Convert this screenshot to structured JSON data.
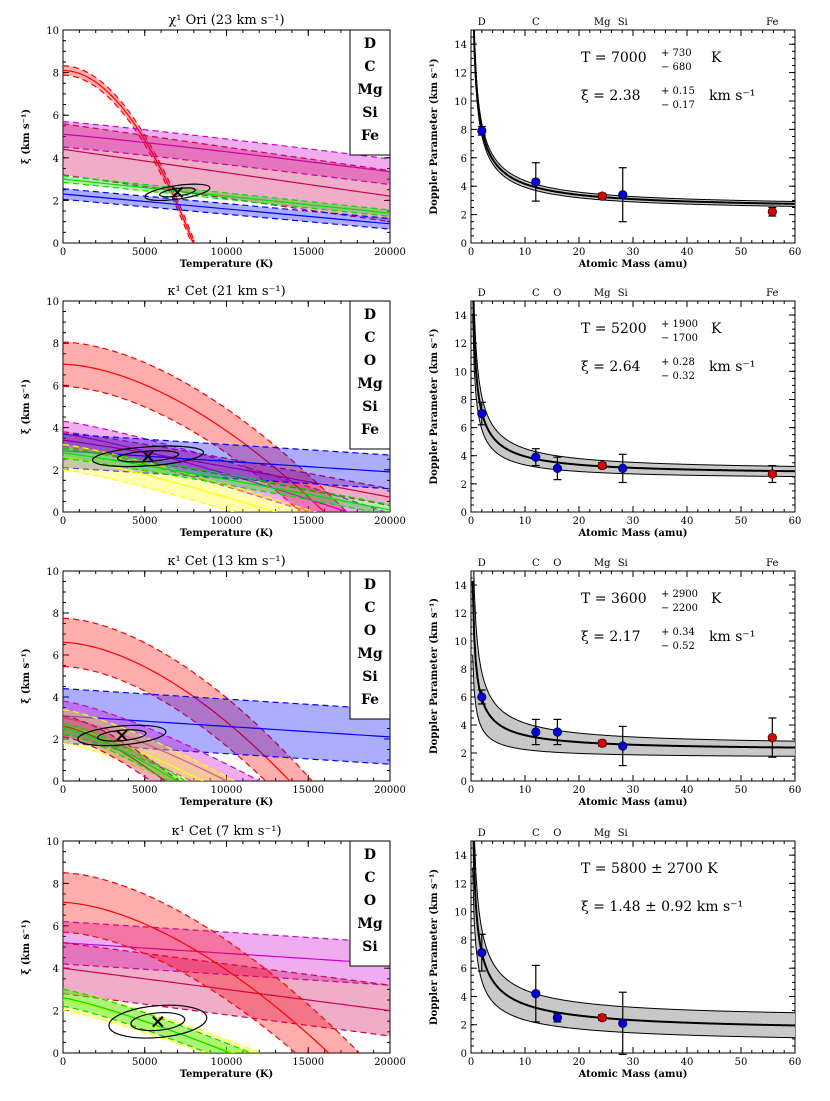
{
  "figure": {
    "x_axis_label": "Temperature (K)",
    "y_axis_label": "ξ (km s⁻¹)",
    "doppler_x_label": "Atomic Mass (amu)",
    "doppler_y_label": "Doppler Parameter (km s⁻¹)"
  },
  "colors": {
    "D": "#ff0000",
    "C": "#cc00cc",
    "O": "#ffff00",
    "Mg": "#00dd00",
    "Si": "#cc0055",
    "Fe": "#0000ff",
    "point_light": "#0000dd",
    "point_heavy": "#dd0000",
    "band": "#c8c8c8"
  },
  "chart_data": [
    {
      "type": "scatter",
      "panel": "temperature-xi",
      "title": "χ¹ Ori (23 km s⁻¹)",
      "xlabel": "Temperature (K)",
      "ylabel": "ξ (km s⁻¹)",
      "xlim": [
        0,
        20000
      ],
      "ylim": [
        0,
        10
      ],
      "xticks": [
        "0",
        "5000",
        "10000",
        "15000",
        "20000"
      ],
      "yticks": [
        "0",
        "2",
        "4",
        "6",
        "8",
        "10"
      ],
      "legend": [
        "D",
        "C",
        "Mg",
        "Si",
        "Fe"
      ],
      "best_fit": {
        "T": 7000,
        "xi": 2.38
      },
      "bands": [
        {
          "species": "D",
          "a": 8.1,
          "b": -2e-07,
          "p": 1.95,
          "w": 0.22
        },
        {
          "species": "C",
          "a": 5.1,
          "b": -0.065,
          "p": 1.1,
          "w": 0.6
        },
        {
          "species": "Si",
          "a": 4.4,
          "b": -0.11,
          "p": 1.0,
          "w": 1.2
        },
        {
          "species": "Fe",
          "a": 2.3,
          "b": -0.07,
          "p": 1.0,
          "w": 0.25
        },
        {
          "species": "Mg",
          "a": 3.0,
          "b": -0.08,
          "p": 1.0,
          "w": 0.15
        }
      ],
      "ellipse": {
        "cT": 7000,
        "cxi": 2.38,
        "rT": 2000,
        "rxi": 0.32,
        "rot": -8
      }
    },
    {
      "type": "scatter",
      "panel": "doppler",
      "title": "",
      "xlabel": "Atomic Mass (amu)",
      "ylabel": "Doppler Parameter (km s⁻¹)",
      "xlim": [
        0,
        60
      ],
      "ylim": [
        0,
        15
      ],
      "xticks": [
        "0",
        "10",
        "20",
        "30",
        "40",
        "50",
        "60"
      ],
      "yticks": [
        "0",
        "2",
        "4",
        "6",
        "8",
        "10",
        "12",
        "14"
      ],
      "elements": [
        {
          "label": "D",
          "mass": 2
        },
        {
          "label": "C",
          "mass": 12
        },
        {
          "label": "Mg",
          "mass": 24.3
        },
        {
          "label": "Si",
          "mass": 28.1
        },
        {
          "label": "Fe",
          "mass": 55.8
        }
      ],
      "points": [
        {
          "mass": 2,
          "b": 7.9,
          "err": 0.3,
          "color": "point_light"
        },
        {
          "mass": 12,
          "b": 4.3,
          "err": 1.35,
          "color": "point_light"
        },
        {
          "mass": 24.3,
          "b": 3.3,
          "err": 0.2,
          "color": "point_heavy"
        },
        {
          "mass": 28.1,
          "b": 3.4,
          "err": 1.9,
          "color": "point_light"
        },
        {
          "mass": 55.8,
          "b": 2.2,
          "err": 0.3,
          "color": "point_heavy"
        }
      ],
      "fit": {
        "T": 7000,
        "xi": 2.38,
        "T_hi": 7730,
        "T_lo": 6320,
        "xi_hi": 2.53,
        "xi_lo": 2.21
      },
      "ann_T": {
        "value": "7000",
        "plus": "+ 730",
        "minus": "− 680",
        "unit": "K"
      },
      "ann_xi": {
        "value": "2.38",
        "plus": "+ 0.15",
        "minus": "− 0.17",
        "unit": "km s⁻¹"
      }
    },
    {
      "type": "scatter",
      "panel": "temperature-xi",
      "title": "κ¹ Cet (21 km s⁻¹)",
      "xlabel": "Temperature (K)",
      "ylabel": "ξ (km s⁻¹)",
      "xlim": [
        0,
        20000
      ],
      "ylim": [
        0,
        10
      ],
      "xticks": [
        "0",
        "5000",
        "10000",
        "15000",
        "20000"
      ],
      "yticks": [
        "0",
        "2",
        "4",
        "6",
        "8",
        "10"
      ],
      "legend": [
        "D",
        "C",
        "O",
        "Mg",
        "Si",
        "Fe"
      ],
      "best_fit": {
        "T": 5200,
        "xi": 2.64
      },
      "bands": [
        {
          "species": "D",
          "a": 7.0,
          "b": -5e-07,
          "p": 1.7,
          "w": 1.05
        },
        {
          "species": "C",
          "a": 3.7,
          "b": -0.12,
          "p": 1.2,
          "w": 0.6
        },
        {
          "species": "Si",
          "a": 3.4,
          "b": -0.1,
          "p": 1.1,
          "w": 0.4
        },
        {
          "species": "Fe",
          "a": 2.9,
          "b": -0.05,
          "p": 1.0,
          "w": 0.8
        },
        {
          "species": "O",
          "a": 2.6,
          "b": -0.12,
          "p": 1.2,
          "w": 0.6
        },
        {
          "species": "Mg",
          "a": 2.8,
          "b": -0.1,
          "p": 1.1,
          "w": 0.25
        }
      ],
      "ellipse": {
        "cT": 5200,
        "cxi": 2.64,
        "rT": 3400,
        "rxi": 0.45,
        "rot": -4
      }
    },
    {
      "type": "scatter",
      "panel": "doppler",
      "title": "",
      "xlabel": "Atomic Mass (amu)",
      "ylabel": "Doppler Parameter (km s⁻¹)",
      "xlim": [
        0,
        60
      ],
      "ylim": [
        0,
        15
      ],
      "xticks": [
        "0",
        "10",
        "20",
        "30",
        "40",
        "50",
        "60"
      ],
      "yticks": [
        "0",
        "2",
        "4",
        "6",
        "8",
        "10",
        "12",
        "14"
      ],
      "elements": [
        {
          "label": "D",
          "mass": 2
        },
        {
          "label": "C",
          "mass": 12
        },
        {
          "label": "O",
          "mass": 16
        },
        {
          "label": "Mg",
          "mass": 24.3
        },
        {
          "label": "Si",
          "mass": 28.1
        },
        {
          "label": "Fe",
          "mass": 55.8
        }
      ],
      "points": [
        {
          "mass": 2,
          "b": 7.0,
          "err": 0.8,
          "color": "point_light"
        },
        {
          "mass": 12,
          "b": 3.9,
          "err": 0.6,
          "color": "point_light"
        },
        {
          "mass": 16,
          "b": 3.1,
          "err": 0.8,
          "color": "point_light"
        },
        {
          "mass": 24.3,
          "b": 3.3,
          "err": 0.2,
          "color": "point_heavy"
        },
        {
          "mass": 28.1,
          "b": 3.1,
          "err": 1.0,
          "color": "point_light"
        },
        {
          "mass": 55.8,
          "b": 2.7,
          "err": 0.6,
          "color": "point_heavy"
        }
      ],
      "fit": {
        "T": 5200,
        "xi": 2.64,
        "T_hi": 7100,
        "T_lo": 3500,
        "xi_hi": 2.92,
        "xi_lo": 2.32
      },
      "ann_T": {
        "value": "5200",
        "plus": "+ 1900",
        "minus": "− 1700",
        "unit": "K"
      },
      "ann_xi": {
        "value": "2.64",
        "plus": "+ 0.28",
        "minus": "− 0.32",
        "unit": "km s⁻¹"
      }
    },
    {
      "type": "scatter",
      "panel": "temperature-xi",
      "title": "κ¹ Cet (13 km s⁻¹)",
      "xlabel": "Temperature (K)",
      "ylabel": "ξ (km s⁻¹)",
      "xlim": [
        0,
        20000
      ],
      "ylim": [
        0,
        10
      ],
      "xticks": [
        "0",
        "5000",
        "10000",
        "15000",
        "20000"
      ],
      "yticks": [
        "0",
        "2",
        "4",
        "6",
        "8",
        "10"
      ],
      "legend": [
        "D",
        "C",
        "O",
        "Mg",
        "Si",
        "Fe"
      ],
      "best_fit": {
        "T": 3600,
        "xi": 2.17
      },
      "bands": [
        {
          "species": "D",
          "a": 6.6,
          "b": -6e-07,
          "p": 1.7,
          "w": 1.15
        },
        {
          "species": "Fe",
          "a": 3.1,
          "b": -0.05,
          "p": 1.0,
          "w": 1.3
        },
        {
          "species": "C",
          "a": 3.0,
          "b": -0.15,
          "p": 1.3,
          "w": 0.8
        },
        {
          "species": "O",
          "a": 2.6,
          "b": -0.16,
          "p": 1.3,
          "w": 0.8
        },
        {
          "species": "Si",
          "a": 2.6,
          "b": -0.2,
          "p": 1.4,
          "w": 0.5
        },
        {
          "species": "Mg",
          "a": 2.5,
          "b": -0.2,
          "p": 1.3,
          "w": 0.25
        }
      ],
      "ellipse": {
        "cT": 3600,
        "cxi": 2.17,
        "rT": 2700,
        "rxi": 0.45,
        "rot": -5
      }
    },
    {
      "type": "scatter",
      "panel": "doppler",
      "title": "",
      "xlabel": "Atomic Mass (amu)",
      "ylabel": "Doppler Parameter (km s⁻¹)",
      "xlim": [
        0,
        60
      ],
      "ylim": [
        0,
        15
      ],
      "xticks": [
        "0",
        "10",
        "20",
        "30",
        "40",
        "50",
        "60"
      ],
      "yticks": [
        "0",
        "2",
        "4",
        "6",
        "8",
        "10",
        "12",
        "14"
      ],
      "elements": [
        {
          "label": "D",
          "mass": 2
        },
        {
          "label": "C",
          "mass": 12
        },
        {
          "label": "O",
          "mass": 16
        },
        {
          "label": "Mg",
          "mass": 24.3
        },
        {
          "label": "Si",
          "mass": 28.1
        },
        {
          "label": "Fe",
          "mass": 55.8
        }
      ],
      "points": [
        {
          "mass": 2,
          "b": 6.0,
          "err": 0.5,
          "color": "point_light"
        },
        {
          "mass": 12,
          "b": 3.5,
          "err": 0.9,
          "color": "point_light"
        },
        {
          "mass": 16,
          "b": 3.5,
          "err": 0.9,
          "color": "point_light"
        },
        {
          "mass": 24.3,
          "b": 2.7,
          "err": 0.2,
          "color": "point_heavy"
        },
        {
          "mass": 28.1,
          "b": 2.5,
          "err": 1.4,
          "color": "point_light"
        },
        {
          "mass": 55.8,
          "b": 3.1,
          "err": 1.4,
          "color": "point_heavy"
        }
      ],
      "fit": {
        "T": 3600,
        "xi": 2.17,
        "T_hi": 6500,
        "T_lo": 1400,
        "xi_hi": 2.51,
        "xi_lo": 1.65
      },
      "ann_T": {
        "value": "3600",
        "plus": "+ 2900",
        "minus": "− 2200",
        "unit": "K"
      },
      "ann_xi": {
        "value": "2.17",
        "plus": "+ 0.34",
        "minus": "− 0.52",
        "unit": "km s⁻¹"
      }
    },
    {
      "type": "scatter",
      "panel": "temperature-xi",
      "title": "κ¹ Cet (7 km s⁻¹)",
      "xlabel": "Temperature (K)",
      "ylabel": "ξ (km s⁻¹)",
      "xlim": [
        0,
        20000
      ],
      "ylim": [
        0,
        10
      ],
      "xticks": [
        "0",
        "5000",
        "10000",
        "15000",
        "20000"
      ],
      "yticks": [
        "0",
        "2",
        "4",
        "6",
        "8",
        "10"
      ],
      "legend": [
        "D",
        "C",
        "O",
        "Mg",
        "Si"
      ],
      "best_fit": {
        "T": 5800,
        "xi": 1.48
      },
      "bands": [
        {
          "species": "C",
          "a": 5.2,
          "b": -0.05,
          "p": 1.0,
          "w": 1.0
        },
        {
          "species": "Si",
          "a": 4.0,
          "b": -0.1,
          "p": 1.0,
          "w": 1.2
        },
        {
          "species": "D",
          "a": 7.1,
          "b": -8e-07,
          "p": 1.65,
          "w": 1.4
        },
        {
          "species": "O",
          "a": 2.5,
          "b": -0.15,
          "p": 1.2,
          "w": 0.5
        },
        {
          "species": "Mg",
          "a": 2.6,
          "b": -0.16,
          "p": 1.2,
          "w": 0.4
        }
      ],
      "ellipse": {
        "cT": 5800,
        "cxi": 1.48,
        "rT": 3000,
        "rxi": 0.75,
        "rot": -5
      }
    },
    {
      "type": "scatter",
      "panel": "doppler",
      "title": "",
      "xlabel": "Atomic Mass (amu)",
      "ylabel": "Doppler Parameter (km s⁻¹)",
      "xlim": [
        0,
        60
      ],
      "ylim": [
        0,
        15
      ],
      "xticks": [
        "0",
        "10",
        "20",
        "30",
        "40",
        "50",
        "60"
      ],
      "yticks": [
        "0",
        "2",
        "4",
        "6",
        "8",
        "10",
        "12",
        "14"
      ],
      "elements": [
        {
          "label": "D",
          "mass": 2
        },
        {
          "label": "C",
          "mass": 12
        },
        {
          "label": "O",
          "mass": 16
        },
        {
          "label": "Mg",
          "mass": 24.3
        },
        {
          "label": "Si",
          "mass": 28.1
        }
      ],
      "points": [
        {
          "mass": 2,
          "b": 7.1,
          "err": 1.3,
          "color": "point_light"
        },
        {
          "mass": 12,
          "b": 4.2,
          "err": 2.0,
          "color": "point_light"
        },
        {
          "mass": 16,
          "b": 2.5,
          "err": 0.3,
          "color": "point_light"
        },
        {
          "mass": 24.3,
          "b": 2.5,
          "err": 0.2,
          "color": "point_heavy"
        },
        {
          "mass": 28.1,
          "b": 2.1,
          "err": 2.2,
          "color": "point_light"
        }
      ],
      "fit": {
        "T": 5800,
        "xi": 1.48,
        "T_hi": 8500,
        "T_lo": 3100,
        "xi_hi": 2.4,
        "xi_lo": 0.56
      },
      "ann_T": {
        "value": "5800",
        "pm": "± 2700",
        "unit": "K"
      },
      "ann_xi": {
        "value": "1.48",
        "pm": "± 0.92",
        "unit": "km s⁻¹"
      }
    }
  ]
}
